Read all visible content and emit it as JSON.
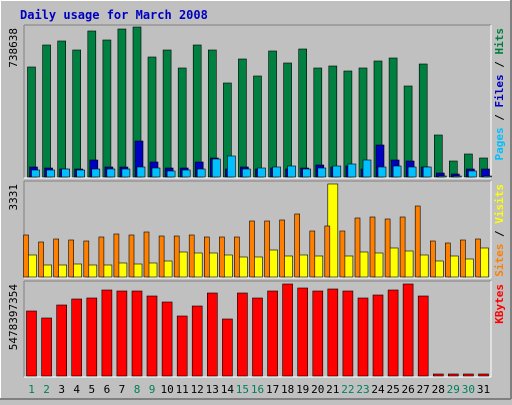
{
  "chart_data": {
    "type": "bar",
    "title": "Daily usage for March 2008",
    "categories": [
      "1",
      "2",
      "3",
      "4",
      "5",
      "6",
      "7",
      "8",
      "9",
      "10",
      "11",
      "12",
      "13",
      "14",
      "15",
      "16",
      "17",
      "18",
      "19",
      "20",
      "21",
      "22",
      "23",
      "24",
      "25",
      "26",
      "27",
      "28",
      "29",
      "30",
      "31"
    ],
    "weekend_days": [
      "1",
      "2",
      "8",
      "9",
      "15",
      "16",
      "22",
      "23",
      "29",
      "30"
    ],
    "panels": [
      {
        "id": "hits",
        "ymax_label": "738638",
        "ymax": 738638,
        "right_label": [
          {
            "text": "Pages",
            "color": "#00c0ff"
          },
          {
            "text": " / ",
            "color": "#000000"
          },
          {
            "text": "Files",
            "color": "#0000c0"
          },
          {
            "text": " / ",
            "color": "#000000"
          },
          {
            "text": "Hits",
            "color": "#008040"
          }
        ],
        "series": [
          {
            "name": "Hits",
            "color": "#008040",
            "values": [
              544000,
              652000,
              676000,
              631000,
              723000,
              680000,
              733000,
              742000,
              593000,
              628000,
              540000,
              656000,
              628000,
              467000,
              585000,
              500000,
              625000,
              567000,
              636000,
              541000,
              552000,
              525000,
              540000,
              576000,
              590000,
              449000,
              558000,
              209000,
              78000,
              112000,
              95000
            ]
          },
          {
            "name": "Files",
            "color": "#0000c0",
            "values": [
              48000,
              44000,
              40000,
              38000,
              85000,
              50000,
              48000,
              178000,
              75000,
              46000,
              44000,
              75000,
              96000,
              42000,
              48000,
              38000,
              44000,
              40000,
              44000,
              60000,
              50000,
              54000,
              42000,
              160000,
              85000,
              78000,
              52000,
              20000,
              14000,
              40000,
              38000
            ]
          },
          {
            "name": "Pages",
            "color": "#00c0ff",
            "values": [
              35000,
              33000,
              38000,
              37000,
              38000,
              40000,
              40000,
              48000,
              44000,
              32000,
              36000,
              40000,
              90000,
              104000,
              42000,
              44000,
              48000,
              56000,
              40000,
              44000,
              56000,
              62000,
              82000,
              52000,
              54000,
              48000,
              52000,
              4000,
              4000,
              30000,
              4000
            ]
          }
        ]
      },
      {
        "id": "visits",
        "ymax_label": "3331",
        "ymax": 3331,
        "right_label": [
          {
            "text": "Sites",
            "color": "#ff8000"
          },
          {
            "text": " / ",
            "color": "#000000"
          },
          {
            "text": "Visits",
            "color": "#ffff00"
          }
        ],
        "series": [
          {
            "name": "Visits",
            "color": "#ffff00",
            "values": [
              780,
              440,
              440,
              470,
              440,
              440,
              490,
              480,
              505,
              560,
              905,
              860,
              860,
              785,
              705,
              720,
              955,
              770,
              780,
              755,
              3331,
              760,
              885,
              860,
              1050,
              930,
              805,
              590,
              765,
              635,
              1050
            ]
          },
          {
            "name": "Sites",
            "color": "#ff8000",
            "values": [
              1515,
              1245,
              1375,
              1315,
              1280,
              1450,
              1540,
              1490,
              1595,
              1465,
              1470,
              1515,
              1435,
              1415,
              1415,
              2005,
              2005,
              2025,
              2245,
              1645,
              1815,
              1640,
              2125,
              2155,
              2085,
              2140,
              2550,
              1305,
              1230,
              1330,
              1345
            ]
          }
        ]
      },
      {
        "id": "kbytes",
        "ymax_label": "5478397354",
        "ymax": 5478397354,
        "right_label": [
          {
            "text": "KBytes",
            "color": "#ff0000"
          }
        ],
        "series": [
          {
            "name": "KBytes",
            "color": "#ff0000",
            "values": [
              3880000000,
              3470000000,
              4220000000,
              4580000000,
              4640000000,
              5150000000,
              5090000000,
              5040000000,
              4740000000,
              4430000000,
              3600000000,
              4180000000,
              4950000000,
              3420000000,
              4950000000,
              4620000000,
              5050000000,
              5478000000,
              5250000000,
              5050000000,
              5200000000,
              5070000000,
              4620000000,
              4850000000,
              5110000000,
              5478000000,
              4770000000,
              100000000,
              100000000,
              100000000,
              100000000
            ]
          }
        ]
      }
    ]
  }
}
